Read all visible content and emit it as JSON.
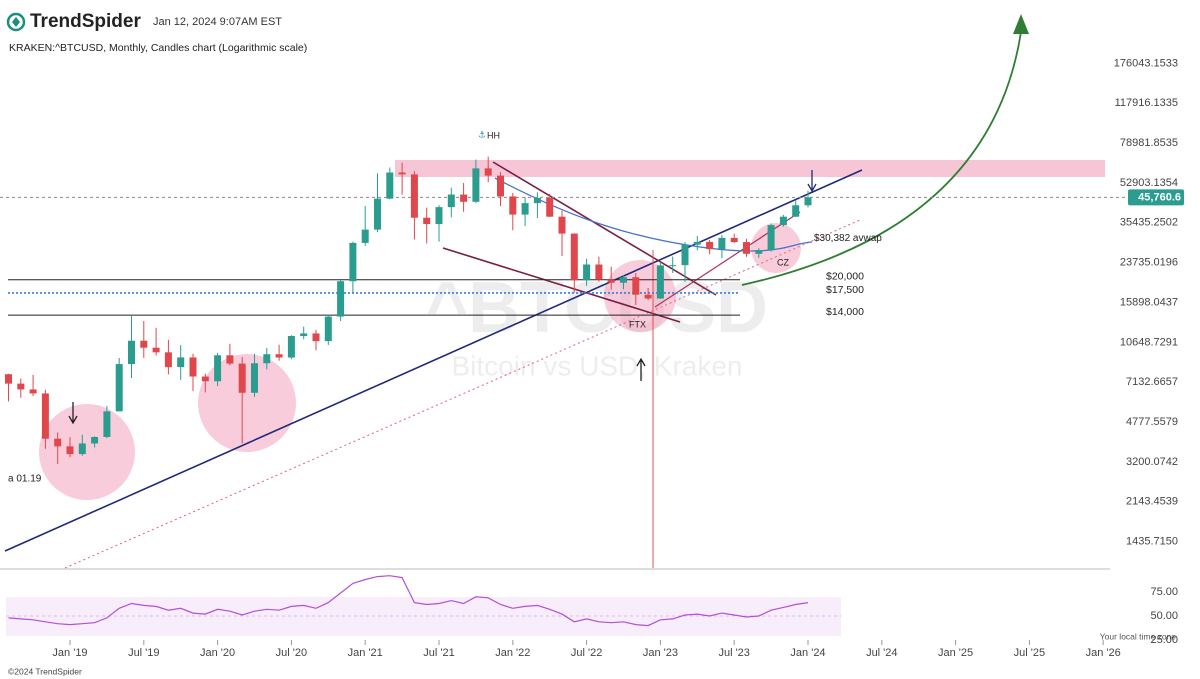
{
  "header": {
    "brand": "TrendSpider",
    "timestamp": "Jan 12, 2024 9:07AM EST",
    "subtitle": "KRAKEN:^BTCUSD, Monthly, Candles chart (Logarithmic scale)",
    "footer": "©2024 TrendSpider",
    "timezone": "Your local time zone"
  },
  "chart_data": {
    "type": "candlestick",
    "log_scale": true,
    "watermark": "^BTCUSD",
    "watermark_sub": "Bitcoin vs USD, Kraken",
    "up_color": "#2a9d8f",
    "down_color": "#e0474c",
    "x": [
      "2018-08",
      "2018-09",
      "2018-10",
      "2018-11",
      "2018-12",
      "2019-01",
      "2019-02",
      "2019-03",
      "2019-04",
      "2019-05",
      "2019-06",
      "2019-07",
      "2019-08",
      "2019-09",
      "2019-10",
      "2019-11",
      "2019-12",
      "2020-01",
      "2020-02",
      "2020-03",
      "2020-04",
      "2020-05",
      "2020-06",
      "2020-07",
      "2020-08",
      "2020-09",
      "2020-10",
      "2020-11",
      "2020-12",
      "2021-01",
      "2021-02",
      "2021-03",
      "2021-04",
      "2021-05",
      "2021-06",
      "2021-07",
      "2021-08",
      "2021-09",
      "2021-10",
      "2021-11",
      "2021-12",
      "2022-01",
      "2022-02",
      "2022-03",
      "2022-04",
      "2022-05",
      "2022-06",
      "2022-07",
      "2022-08",
      "2022-09",
      "2022-10",
      "2022-11",
      "2022-12",
      "2023-01",
      "2023-02",
      "2023-03",
      "2023-04",
      "2023-05",
      "2023-06",
      "2023-07",
      "2023-08",
      "2023-09",
      "2023-10",
      "2023-11",
      "2023-12",
      "2024-01"
    ],
    "open": [
      7730,
      7030,
      6630,
      6370,
      4040,
      3740,
      3460,
      3850,
      4110,
      5320,
      8560,
      10820,
      10090,
      9630,
      8300,
      9150,
      7550,
      7200,
      9350,
      8600,
      6410,
      8630,
      9450,
      9140,
      11350,
      11650,
      10780,
      13800,
      19700,
      28960,
      33100,
      45200,
      58800,
      57700,
      37300,
      35000,
      41500,
      47100,
      43800,
      61300,
      57000,
      46200,
      38500,
      43200,
      45500,
      37700,
      31800,
      19900,
      23300,
      20000,
      19400,
      20500,
      17200,
      16550,
      23100,
      23150,
      28450,
      29250,
      27200,
      30450,
      29200,
      25950,
      26950,
      34650,
      37700,
      42280
    ],
    "high": [
      7760,
      7400,
      7680,
      6600,
      4300,
      4100,
      4200,
      4140,
      5620,
      9100,
      13880,
      13200,
      12330,
      10920,
      10370,
      9500,
      7770,
      9590,
      10500,
      9200,
      9470,
      10070,
      10400,
      11450,
      12480,
      12080,
      14100,
      19940,
      29300,
      41970,
      58350,
      61800,
      64900,
      59600,
      41300,
      42300,
      50500,
      52900,
      67000,
      69000,
      59100,
      47900,
      45800,
      48200,
      47400,
      40000,
      31900,
      24700,
      25200,
      22800,
      21000,
      21400,
      18400,
      23950,
      25250,
      29200,
      31050,
      29850,
      31400,
      31800,
      30200,
      27450,
      35200,
      38400,
      44700,
      49000
    ],
    "low": [
      5880,
      6100,
      6200,
      3650,
      3130,
      3350,
      3400,
      3700,
      4060,
      5320,
      7440,
      9100,
      9330,
      7710,
      7300,
      6520,
      6430,
      6860,
      8450,
      3850,
      6150,
      8120,
      8850,
      8990,
      10980,
      9840,
      10380,
      13200,
      17580,
      28130,
      32350,
      44950,
      47000,
      30000,
      28800,
      29300,
      37400,
      39600,
      43300,
      53300,
      42000,
      32900,
      34300,
      37200,
      37600,
      25400,
      17600,
      18800,
      19600,
      18100,
      18200,
      15500,
      16300,
      16500,
      21400,
      19550,
      26900,
      25800,
      24800,
      28900,
      25200,
      24900,
      26550,
      34100,
      37600,
      41400
    ],
    "close": [
      7030,
      6630,
      6370,
      4040,
      3740,
      3460,
      3850,
      4110,
      5320,
      8560,
      10820,
      10090,
      9630,
      8300,
      9150,
      7550,
      7200,
      9350,
      8600,
      6410,
      8630,
      9450,
      9140,
      11350,
      11650,
      10780,
      13800,
      19700,
      28960,
      33100,
      45200,
      58800,
      57700,
      37300,
      35000,
      41500,
      47100,
      43800,
      61300,
      57000,
      46200,
      38500,
      43200,
      45500,
      37700,
      31800,
      19900,
      23300,
      20000,
      19400,
      20500,
      17200,
      16550,
      23100,
      23150,
      28450,
      29250,
      27200,
      30450,
      29200,
      25950,
      26950,
      34650,
      37700,
      42280,
      45760.6
    ],
    "ylim": [
      1100,
      223000
    ],
    "yticks": [
      176043.1533,
      117916.1335,
      78981.8535,
      52903.1354,
      35435.2502,
      23735.0196,
      15898.0437,
      10648.7291,
      7132.6657,
      4777.5579,
      3200.0742,
      2143.4539,
      {
        "value": 1435.715,
        "label": "1435.7150"
      }
    ],
    "xticks": [
      {
        "value": "2019-01",
        "label": "Jan '19"
      },
      {
        "value": "2019-07",
        "label": "Jul '19"
      },
      {
        "value": "2020-01",
        "label": "Jan '20"
      },
      {
        "value": "2020-07",
        "label": "Jul '20"
      },
      {
        "value": "2021-01",
        "label": "Jan '21"
      },
      {
        "value": "2021-07",
        "label": "Jul '21"
      },
      {
        "value": "2022-01",
        "label": "Jan '22"
      },
      {
        "value": "2022-07",
        "label": "Jul '22"
      },
      {
        "value": "2023-01",
        "label": "Jan '23"
      },
      {
        "value": "2023-07",
        "label": "Jul '23"
      },
      {
        "value": "2024-01",
        "label": "Jan '24"
      },
      {
        "value": "2024-07",
        "label": "Jul '24"
      },
      {
        "value": "2025-01",
        "label": "Jan '25"
      },
      {
        "value": "2025-07",
        "label": "Jul '25"
      },
      {
        "value": "2026-01",
        "label": "Jan '26"
      }
    ],
    "last_price": {
      "value": 45760.6,
      "label": "45,760.6",
      "color": "#2a9d8f"
    },
    "levels": [
      {
        "value": 20000,
        "label": "$20,000",
        "color": "#222222",
        "dash": false
      },
      {
        "value": 17500,
        "label": "$17,500",
        "color": "#3a7bd5",
        "dash": true
      },
      {
        "value": 14000,
        "label": "$14,000",
        "color": "#222222",
        "dash": false
      }
    ],
    "avwap": {
      "value": 30382,
      "label": "$30,382 avwap"
    },
    "annotations": [
      "HH",
      "FTX",
      "CZ",
      "a 01.19"
    ],
    "indicator": {
      "type": "line",
      "color": "#b44fd6",
      "values": [
        48,
        47,
        46,
        44,
        42,
        41,
        42,
        43,
        48,
        58,
        63,
        61,
        60,
        56,
        58,
        53,
        52,
        57,
        55,
        51,
        55,
        57,
        56,
        60,
        61,
        58,
        64,
        74,
        84,
        88,
        91,
        92,
        90,
        64,
        62,
        63,
        66,
        63,
        70,
        69,
        62,
        58,
        60,
        61,
        57,
        52,
        44,
        47,
        44,
        43,
        44,
        41,
        40,
        46,
        47,
        51,
        52,
        50,
        53,
        51,
        49,
        50,
        56,
        59,
        62,
        64
      ],
      "ylim": [
        25,
        100
      ],
      "yticks": [
        {
          "value": 75,
          "label": "75.00"
        },
        {
          "value": 50,
          "label": "50.00"
        },
        {
          "value": 25,
          "label": "25.00"
        }
      ]
    }
  }
}
